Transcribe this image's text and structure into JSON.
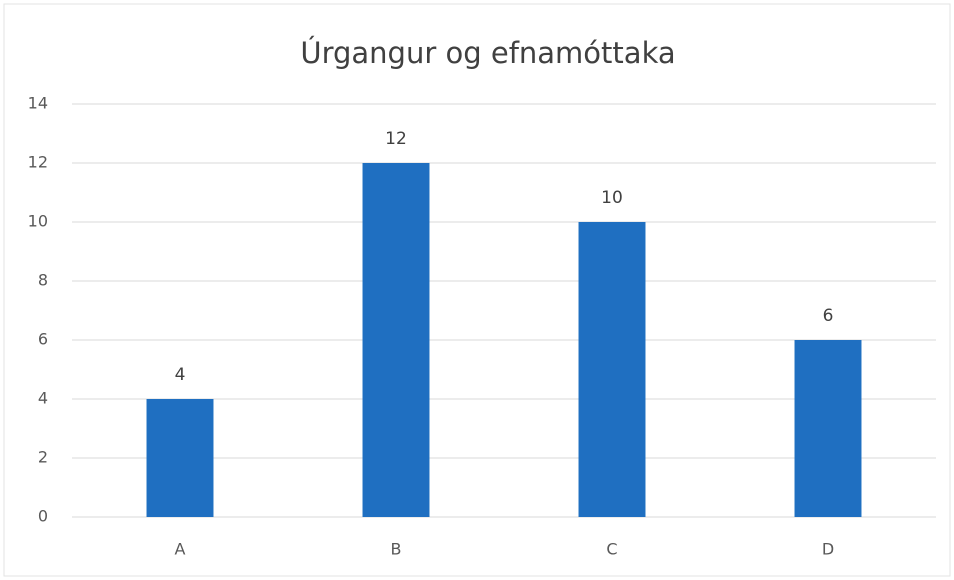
{
  "chart_data": {
    "type": "bar",
    "title": "Úrgangur og efnamóttaka",
    "categories": [
      "A",
      "B",
      "C",
      "D"
    ],
    "values": [
      4,
      12,
      10,
      6
    ],
    "color": "#1f6fc1",
    "ylim": [
      0,
      14
    ],
    "yticks": [
      0,
      2,
      4,
      6,
      8,
      10,
      12,
      14
    ],
    "grid": true,
    "data_labels": true
  }
}
